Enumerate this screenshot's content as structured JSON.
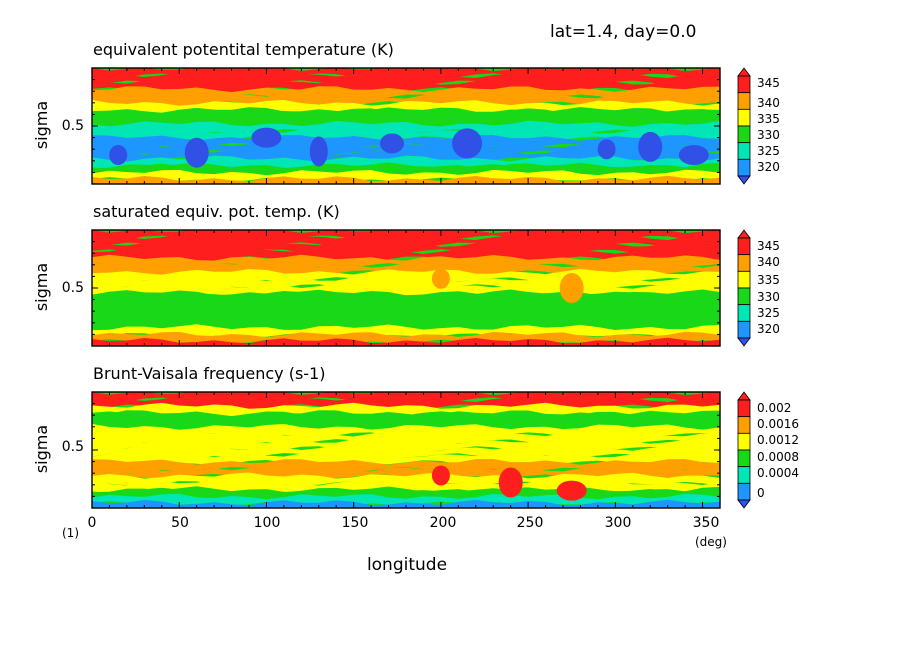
{
  "header": "lat=1.4, day=0.0",
  "corner_label": "(1)",
  "colors": {
    "levels": [
      "#3050e6",
      "#1e96ff",
      "#00e6b4",
      "#18d818",
      "#ffff00",
      "#ffa000",
      "#ff1e1e"
    ]
  },
  "chart_data": [
    {
      "type": "heatmap",
      "title": "equivalent potentital temperature (K)",
      "xlabel": "",
      "ylabel": "sigma",
      "xlim": [
        0,
        360
      ],
      "ylim": [
        0,
        1
      ],
      "yticks": [
        "0.5"
      ],
      "colorbar": {
        "ticks": [
          "345",
          "340",
          "335",
          "330",
          "325",
          "320"
        ]
      },
      "vertical_bands": [
        {
          "sigma": 0.03,
          "level": 6
        },
        {
          "sigma": 0.09,
          "level": 6
        },
        {
          "sigma": 0.15,
          "level": 6
        },
        {
          "sigma": 0.21,
          "level": 5
        },
        {
          "sigma": 0.27,
          "level": 5
        },
        {
          "sigma": 0.33,
          "level": 4
        },
        {
          "sigma": 0.39,
          "level": 3
        },
        {
          "sigma": 0.45,
          "level": 3
        },
        {
          "sigma": 0.51,
          "level": 2
        },
        {
          "sigma": 0.57,
          "level": 2
        },
        {
          "sigma": 0.63,
          "level": 1
        },
        {
          "sigma": 0.69,
          "level": 1
        },
        {
          "sigma": 0.75,
          "level": 1
        },
        {
          "sigma": 0.81,
          "level": 2
        },
        {
          "sigma": 0.87,
          "level": 3
        },
        {
          "sigma": 0.93,
          "level": 4
        },
        {
          "sigma": 0.98,
          "level": 5
        }
      ],
      "blobs": [
        {
          "lon": 15,
          "sigma": 0.75,
          "level": 0
        },
        {
          "lon": 60,
          "sigma": 0.73,
          "level": 0
        },
        {
          "lon": 100,
          "sigma": 0.6,
          "level": 0
        },
        {
          "lon": 130,
          "sigma": 0.72,
          "level": 0
        },
        {
          "lon": 172,
          "sigma": 0.65,
          "level": 0
        },
        {
          "lon": 215,
          "sigma": 0.65,
          "level": 0
        },
        {
          "lon": 295,
          "sigma": 0.7,
          "level": 0
        },
        {
          "lon": 320,
          "sigma": 0.68,
          "level": 0
        },
        {
          "lon": 345,
          "sigma": 0.75,
          "level": 0
        }
      ]
    },
    {
      "type": "heatmap",
      "title": "saturated equiv. pot. temp. (K)",
      "xlabel": "",
      "ylabel": "sigma",
      "xlim": [
        0,
        360
      ],
      "ylim": [
        0,
        1
      ],
      "yticks": [
        "0.5"
      ],
      "colorbar": {
        "ticks": [
          "345",
          "340",
          "335",
          "330",
          "325",
          "320"
        ]
      },
      "vertical_bands": [
        {
          "sigma": 0.03,
          "level": 6
        },
        {
          "sigma": 0.09,
          "level": 6
        },
        {
          "sigma": 0.15,
          "level": 6
        },
        {
          "sigma": 0.21,
          "level": 6
        },
        {
          "sigma": 0.27,
          "level": 5
        },
        {
          "sigma": 0.33,
          "level": 5
        },
        {
          "sigma": 0.39,
          "level": 4
        },
        {
          "sigma": 0.45,
          "level": 4
        },
        {
          "sigma": 0.51,
          "level": 4
        },
        {
          "sigma": 0.57,
          "level": 3
        },
        {
          "sigma": 0.63,
          "level": 3
        },
        {
          "sigma": 0.69,
          "level": 3
        },
        {
          "sigma": 0.75,
          "level": 3
        },
        {
          "sigma": 0.81,
          "level": 3
        },
        {
          "sigma": 0.87,
          "level": 4
        },
        {
          "sigma": 0.93,
          "level": 5
        },
        {
          "sigma": 0.98,
          "level": 6
        }
      ],
      "blobs": [
        {
          "lon": 200,
          "sigma": 0.42,
          "level": 5
        },
        {
          "lon": 275,
          "sigma": 0.5,
          "level": 5
        }
      ]
    },
    {
      "type": "heatmap",
      "title": "Brunt-Vaisala frequency (s-1)",
      "xlabel": "longitude",
      "ylabel": "sigma",
      "xlim": [
        0,
        360
      ],
      "ylim": [
        0,
        1
      ],
      "xunit": "(deg)",
      "xticks": [
        "0",
        "50",
        "100",
        "150",
        "200",
        "250",
        "300",
        "350"
      ],
      "yticks": [
        "0.5"
      ],
      "colorbar": {
        "ticks": [
          "0.002",
          "0.0016",
          "0.0012",
          "0.0008",
          "0.0004",
          "0"
        ]
      },
      "vertical_bands": [
        {
          "sigma": 0.03,
          "level": 6
        },
        {
          "sigma": 0.09,
          "level": 6
        },
        {
          "sigma": 0.15,
          "level": 4
        },
        {
          "sigma": 0.21,
          "level": 3
        },
        {
          "sigma": 0.27,
          "level": 3
        },
        {
          "sigma": 0.33,
          "level": 4
        },
        {
          "sigma": 0.39,
          "level": 4
        },
        {
          "sigma": 0.45,
          "level": 4
        },
        {
          "sigma": 0.51,
          "level": 4
        },
        {
          "sigma": 0.57,
          "level": 4
        },
        {
          "sigma": 0.63,
          "level": 5
        },
        {
          "sigma": 0.69,
          "level": 5
        },
        {
          "sigma": 0.75,
          "level": 4
        },
        {
          "sigma": 0.81,
          "level": 4
        },
        {
          "sigma": 0.87,
          "level": 3
        },
        {
          "sigma": 0.93,
          "level": 2
        },
        {
          "sigma": 0.98,
          "level": 1
        }
      ],
      "blobs": [
        {
          "lon": 200,
          "sigma": 0.72,
          "level": 6
        },
        {
          "lon": 240,
          "sigma": 0.78,
          "level": 6
        },
        {
          "lon": 275,
          "sigma": 0.85,
          "level": 6
        }
      ]
    }
  ]
}
